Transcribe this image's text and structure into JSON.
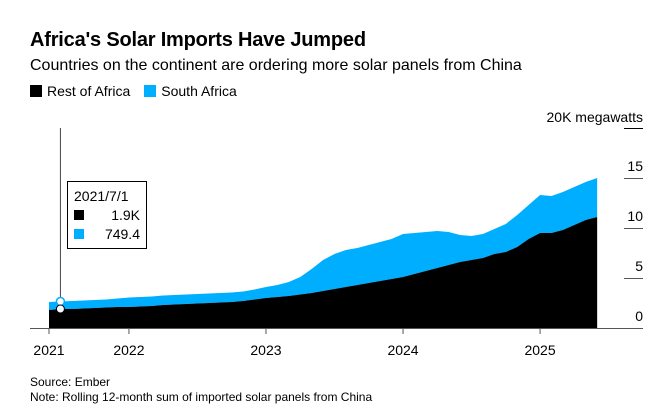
{
  "title": "Africa's Solar Imports Have Jumped",
  "subtitle": "Countries on the continent are ordering more solar panels from China",
  "source": "Source: Ember",
  "note": "Note: Rolling 12-month sum of imported solar panels from China",
  "tooltip": {
    "date": "2021/7/1",
    "rest_value": "1.9K",
    "sa_value": "749.4"
  },
  "chart_data": {
    "type": "area",
    "stacked": true,
    "x_start": "2021-06",
    "x_end": "2025-06",
    "x_frequency": "monthly",
    "x_tick_labels": [
      "2021",
      "2022",
      "2023",
      "2024",
      "2025"
    ],
    "y_unit_label": "20K megawatts",
    "y_tick_labels": [
      "0",
      "5",
      "10",
      "15"
    ],
    "ylim": [
      0,
      20000
    ],
    "legend_position": "top-left",
    "grid": false,
    "series": [
      {
        "name": "Rest of Africa",
        "color": "#000000",
        "values": [
          1800,
          1900,
          1900,
          1950,
          2000,
          2050,
          2100,
          2100,
          2150,
          2200,
          2300,
          2350,
          2400,
          2450,
          2500,
          2550,
          2600,
          2700,
          2850,
          3000,
          3100,
          3200,
          3350,
          3500,
          3700,
          3900,
          4100,
          4300,
          4500,
          4700,
          4900,
          5100,
          5400,
          5700,
          6000,
          6300,
          6600,
          6800,
          7000,
          7400,
          7600,
          8100,
          8900,
          9500,
          9500,
          9800,
          10300,
          10800,
          11100
        ]
      },
      {
        "name": "South Africa",
        "color": "#00AEFF",
        "values": [
          800,
          749.4,
          800,
          800,
          800,
          800,
          850,
          950,
          950,
          950,
          950,
          950,
          950,
          950,
          950,
          950,
          950,
          950,
          1000,
          1100,
          1200,
          1400,
          1750,
          2400,
          3100,
          3500,
          3700,
          3700,
          3800,
          3900,
          4000,
          4300,
          4100,
          3900,
          3700,
          3300,
          2700,
          2400,
          2400,
          2500,
          2800,
          3200,
          3400,
          3800,
          3700,
          3800,
          3800,
          3800,
          3900
        ]
      }
    ]
  }
}
